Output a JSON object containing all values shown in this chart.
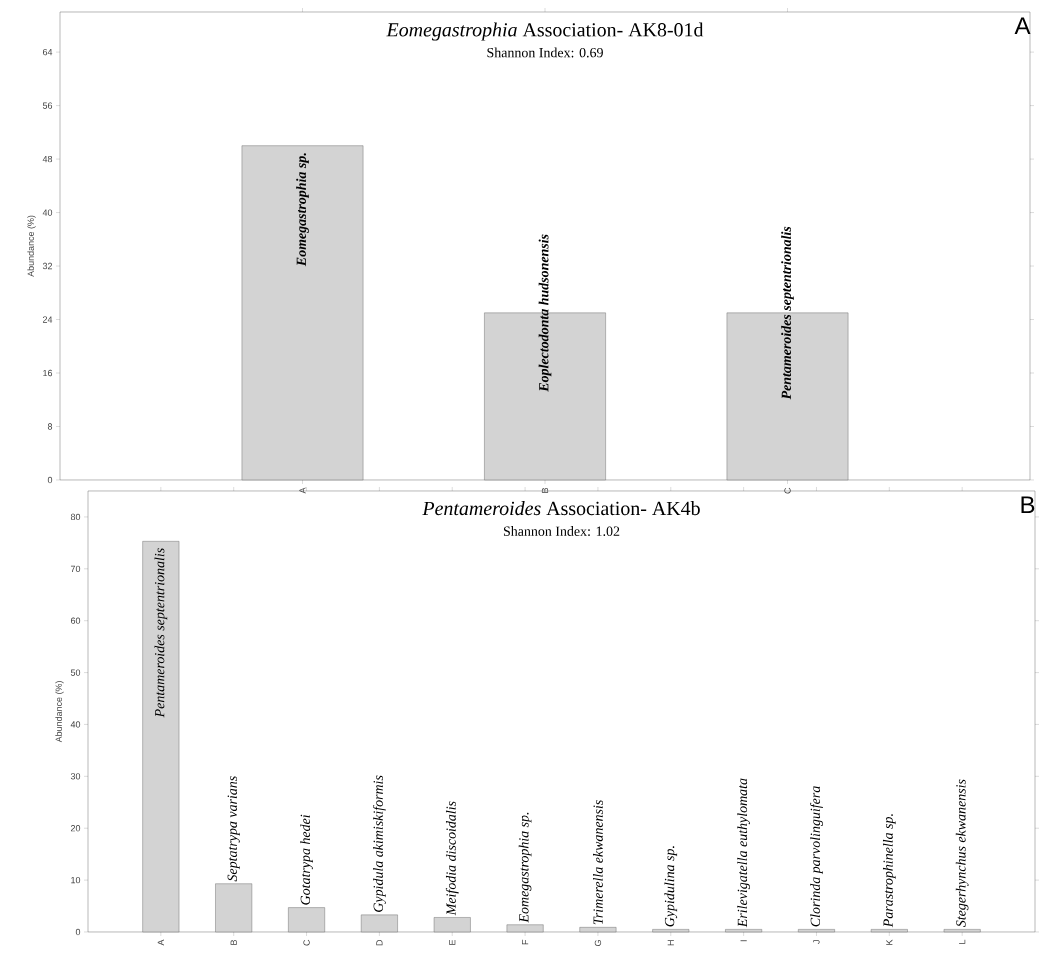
{
  "chart_data": [
    {
      "type": "bar",
      "title": "*Eomegastrophia* Association- AK8-01d",
      "subtitle": "Shannon Index: 0.69",
      "ylabel": "Abundance (%)",
      "categories": [
        "A",
        "B",
        "C"
      ],
      "values": [
        50,
        25,
        25
      ],
      "color": "#d3d3d3",
      "ylim": [
        0,
        70
      ],
      "yticks": [
        0,
        8,
        16,
        24,
        32,
        40,
        48,
        56,
        64
      ],
      "annotations": [
        {
          "text": "*Eomegastrophia* sp.",
          "x": "A",
          "y": 50
        },
        {
          "text": "Eoplectodonta hudsonensis",
          "x": "B",
          "y": 25
        },
        {
          "text": "Pentameroides septentrionalis",
          "x": "C",
          "y": 25
        },
        "A"
      ]
    },
    {
      "type": "bar",
      "title": "*Pentameroides* Association- AK4b",
      "subtitle": "Shannon Index: 1.02",
      "ylabel": "Abundance (%)",
      "categories": [
        "A",
        "B",
        "C",
        "D",
        "E",
        "F",
        "G",
        "H",
        "I",
        "J",
        "K",
        "L"
      ],
      "values": [
        75.3,
        9.3,
        4.7,
        3.3,
        2.8,
        1.4,
        0.9,
        0.5,
        0.5,
        0.5,
        0.5,
        0.5
      ],
      "color": "#d3d3d3",
      "ylim": [
        0,
        85
      ],
      "yticks": [
        0,
        10,
        20,
        30,
        40,
        50,
        60,
        70,
        80
      ],
      "annotations": [
        {
          "text": "Pentameroides septentrionalis",
          "x": "A",
          "y": 75.3
        },
        {
          "text": "Septatrypa varians",
          "x": "B",
          "y": 9.3
        },
        {
          "text": "Gotatrypa hedei",
          "x": "C",
          "y": 4.7
        },
        {
          "text": "Gypidula akimiskiformis",
          "x": "D",
          "y": 3.3
        },
        {
          "text": "Meifodia discoidalis",
          "x": "E",
          "y": 2.8
        },
        {
          "text": "Eomegastrophia sp.",
          "x": "F",
          "y": 1.4
        },
        {
          "text": "Trimerella ekwanensis",
          "x": "G",
          "y": 0.9
        },
        {
          "text": "Gypidulina sp.",
          "x": "H",
          "y": 0.5
        },
        {
          "text": "Erilevigatella euthylomata",
          "x": "I",
          "y": 0.5
        },
        {
          "text": "Clorinda parvolinguifera",
          "x": "J",
          "y": 0.5
        },
        {
          "text": "Parastrophinella sp.",
          "x": "K",
          "y": 0.5
        },
        {
          "text": "Stegerhynchus ekwanensis",
          "x": "L",
          "y": 0.5
        },
        "B"
      ]
    }
  ]
}
